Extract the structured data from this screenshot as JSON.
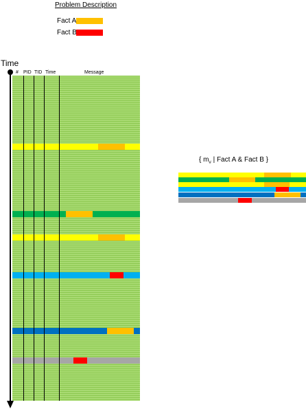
{
  "legend": {
    "title": "Problem Description",
    "items": [
      {
        "label": "Fact A:",
        "color": "#ffc000"
      },
      {
        "label": "Fact B:",
        "color": "#ff0000"
      }
    ]
  },
  "time_label": "Time",
  "columns": [
    "#",
    "PID",
    "TID",
    "Time",
    "Message"
  ],
  "colors": {
    "log_background": "#9cd462",
    "yellow": "#ffff00",
    "green": "#00b050",
    "cyan": "#00b0f0",
    "blue": "#0070c0",
    "gray": "#a6a6a6",
    "fact_a": "#ffc000",
    "fact_b": "#ff0000"
  },
  "result_set": {
    "title_prefix": "{ m",
    "title_subscript": "#",
    "title_suffix": " | Fact A & Fact B }"
  }
}
